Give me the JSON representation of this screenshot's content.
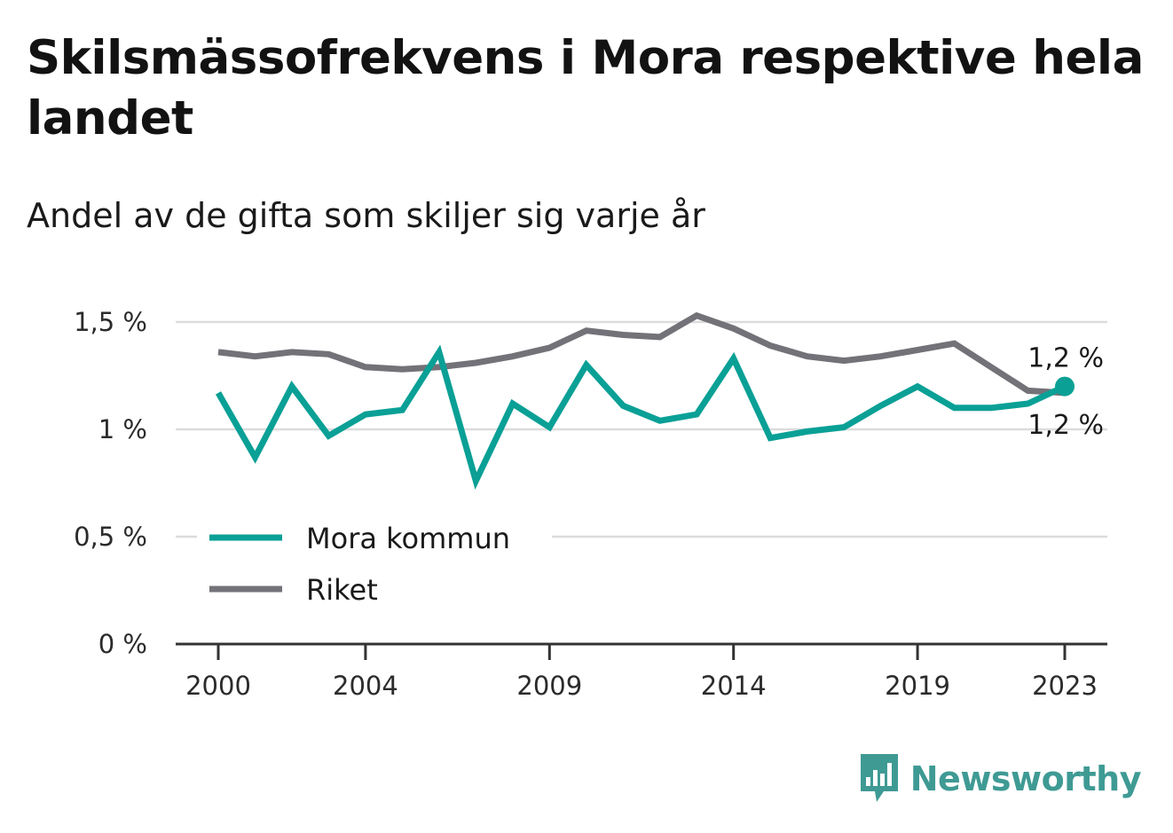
{
  "title": "Skilsmässofrekvens i Mora respektive hela landet",
  "subtitle": "Andel av de gifta som skiljer sig varje år",
  "brand": {
    "name": "Newsworthy",
    "logo_icon": "bar-chart-speech-bubble-icon"
  },
  "colors": {
    "mora": "#0aa096",
    "riket": "#737278",
    "grid": "#dcdcdc",
    "axis": "#333333",
    "brand": "#3f9a94"
  },
  "chart_data": {
    "type": "line",
    "x": [
      2000,
      2001,
      2002,
      2003,
      2004,
      2005,
      2006,
      2007,
      2008,
      2009,
      2010,
      2011,
      2012,
      2013,
      2014,
      2015,
      2016,
      2017,
      2018,
      2019,
      2020,
      2021,
      2022,
      2023
    ],
    "x_tick_values": [
      2000,
      2004,
      2009,
      2014,
      2019,
      2023
    ],
    "x_tick_labels": [
      "2000",
      "2004",
      "2009",
      "2014",
      "2019",
      "2023"
    ],
    "y_tick_values": [
      0,
      0.5,
      1,
      1.5
    ],
    "y_tick_labels": [
      "0 %",
      "0,5 %",
      "1 %",
      "1,5 %"
    ],
    "ylim": [
      0,
      1.5
    ],
    "grid": true,
    "legend_position": "bottom-left",
    "series": [
      {
        "name": "Mora kommun",
        "color": "#0aa096",
        "values": [
          1.17,
          0.87,
          1.2,
          0.97,
          1.07,
          1.09,
          1.36,
          0.76,
          1.12,
          1.01,
          1.3,
          1.11,
          1.04,
          1.07,
          1.33,
          0.96,
          0.99,
          1.01,
          1.11,
          1.2,
          1.1,
          1.1,
          1.12,
          1.2
        ],
        "end_label": "1,2 %"
      },
      {
        "name": "Riket",
        "color": "#737278",
        "values": [
          1.36,
          1.34,
          1.36,
          1.35,
          1.29,
          1.28,
          1.29,
          1.31,
          1.34,
          1.38,
          1.46,
          1.44,
          1.43,
          1.53,
          1.47,
          1.39,
          1.34,
          1.32,
          1.34,
          1.37,
          1.4,
          1.29,
          1.18,
          1.17
        ],
        "end_label": "1,2 %"
      }
    ]
  }
}
